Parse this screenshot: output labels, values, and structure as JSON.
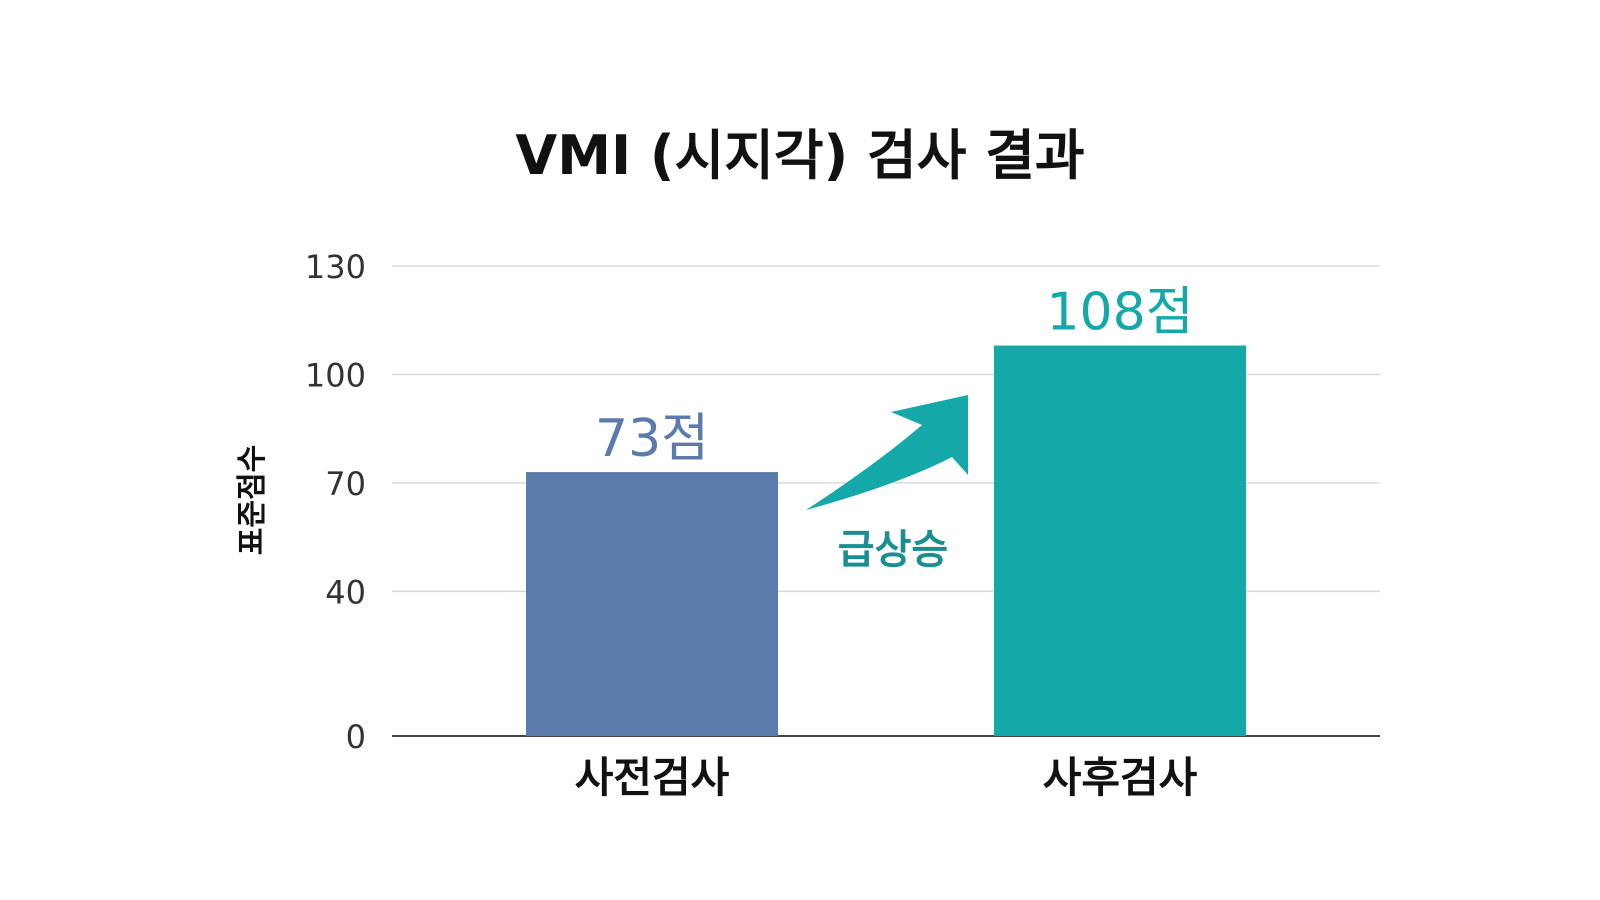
{
  "chart_data": {
    "type": "bar",
    "title": "VMI (시지각) 검사 결과",
    "xlabel": "",
    "ylabel": "표준점수",
    "categories": [
      "사전검사",
      "사후검사"
    ],
    "values": [
      73,
      108
    ],
    "value_labels": [
      "73점",
      "108점"
    ],
    "bar_colors": [
      "#5a7bab",
      "#14a9a8"
    ],
    "label_colors": [
      "#5a7bab",
      "#14a9a8"
    ],
    "yticks": [
      0,
      40,
      70,
      100,
      130
    ],
    "ylim": [
      0,
      130
    ],
    "grid": true,
    "annotation": {
      "text": "급상승",
      "color": "#1a8f91",
      "arrow": "up-right"
    }
  }
}
